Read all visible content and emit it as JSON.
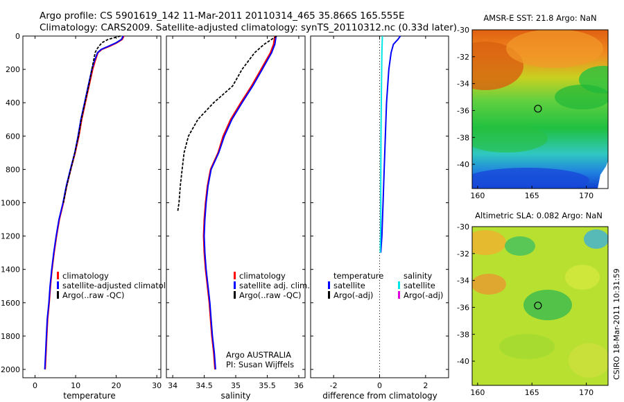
{
  "header": {
    "line1": "Argo profile: CS 5901619_142 11-Mar-2011 20110314_465 35.866S 165.555E",
    "line2": "Climatology: CARS2009. Satellite-adjusted climatology: synTS_20110312.nc (0.33d later)"
  },
  "colors": {
    "climatology": "#ff0000",
    "satellite": "#0000ff",
    "argo": "#000000",
    "salinity_satellite": "#00e5e5",
    "salinity_argo": "#e000e0"
  },
  "chart_data": [
    {
      "type": "line",
      "name": "temperature-profile",
      "xlabel": "temperature",
      "ylabel": "",
      "xlim": [
        -3,
        31
      ],
      "ylim": [
        2050,
        0
      ],
      "xticks": [
        0,
        10,
        20,
        30
      ],
      "yticks": [
        0,
        200,
        400,
        600,
        800,
        1000,
        1200,
        1400,
        1600,
        1800,
        2000
      ],
      "legend": {
        "placement": "lower-right",
        "entries": [
          "climatology",
          "satellite-adjusted climatology",
          "Argo(..raw -QC)"
        ]
      },
      "series": [
        {
          "name": "climatology",
          "color": "#ff0000",
          "points": [
            [
              21.9,
              0
            ],
            [
              21.5,
              20
            ],
            [
              20.2,
              40
            ],
            [
              18.5,
              60
            ],
            [
              16.5,
              80
            ],
            [
              15.5,
              100
            ],
            [
              14.8,
              150
            ],
            [
              14.2,
              200
            ],
            [
              13.3,
              300
            ],
            [
              12.4,
              400
            ],
            [
              11.5,
              500
            ],
            [
              10.8,
              600
            ],
            [
              9.9,
              700
            ],
            [
              8.8,
              800
            ],
            [
              7.8,
              900
            ],
            [
              7.0,
              1000
            ],
            [
              6.0,
              1100
            ],
            [
              5.3,
              1200
            ],
            [
              4.7,
              1300
            ],
            [
              4.2,
              1400
            ],
            [
              3.8,
              1500
            ],
            [
              3.5,
              1600
            ],
            [
              3.1,
              1700
            ],
            [
              2.9,
              1800
            ],
            [
              2.7,
              1900
            ],
            [
              2.5,
              2000
            ]
          ]
        },
        {
          "name": "satellite-adjusted climatology",
          "color": "#0000ff",
          "points": [
            [
              21.7,
              0
            ],
            [
              21.3,
              20
            ],
            [
              20.0,
              40
            ],
            [
              18.2,
              60
            ],
            [
              16.3,
              80
            ],
            [
              15.4,
              100
            ],
            [
              14.6,
              150
            ],
            [
              14.0,
              200
            ],
            [
              13.1,
              300
            ],
            [
              12.2,
              400
            ],
            [
              11.3,
              500
            ],
            [
              10.6,
              600
            ],
            [
              9.8,
              700
            ],
            [
              8.7,
              800
            ],
            [
              7.7,
              900
            ],
            [
              6.9,
              1000
            ],
            [
              5.9,
              1100
            ],
            [
              5.2,
              1200
            ],
            [
              4.6,
              1300
            ],
            [
              4.1,
              1400
            ],
            [
              3.7,
              1500
            ],
            [
              3.4,
              1600
            ],
            [
              3.0,
              1700
            ],
            [
              2.8,
              1800
            ],
            [
              2.6,
              1900
            ],
            [
              2.4,
              2000
            ]
          ]
        },
        {
          "name": "Argo(..raw -QC)",
          "color": "#000000",
          "dashed": true,
          "points": [
            [
              21.0,
              0
            ],
            [
              18.0,
              20
            ],
            [
              16.5,
              40
            ],
            [
              15.8,
              60
            ],
            [
              15.2,
              80
            ],
            [
              14.8,
              100
            ],
            [
              14.4,
              150
            ],
            [
              14.0,
              200
            ],
            [
              13.2,
              300
            ],
            [
              12.3,
              400
            ],
            [
              11.4,
              500
            ],
            [
              10.7,
              600
            ],
            [
              9.8,
              700
            ],
            [
              8.8,
              800
            ],
            [
              7.8,
              900
            ],
            [
              7.0,
              1000
            ]
          ]
        }
      ]
    },
    {
      "type": "line",
      "name": "salinity-profile",
      "xlabel": "salinity",
      "ylabel": "",
      "xlim": [
        33.9,
        36.1
      ],
      "ylim": [
        2050,
        0
      ],
      "xticks": [
        34,
        34.5,
        35,
        35.5,
        36
      ],
      "legend": {
        "placement": "lower-right",
        "entries": [
          "climatology",
          "satellite adj. clim.",
          "Argo(..raw -QC)"
        ]
      },
      "annotations": [
        "Argo AUSTRALIA",
        "PI: Susan Wijffels"
      ],
      "series": [
        {
          "name": "climatology",
          "color": "#ff0000",
          "points": [
            [
              35.62,
              0
            ],
            [
              35.6,
              50
            ],
            [
              35.55,
              100
            ],
            [
              35.4,
              200
            ],
            [
              35.25,
              300
            ],
            [
              35.08,
              400
            ],
            [
              34.92,
              500
            ],
            [
              34.8,
              600
            ],
            [
              34.72,
              700
            ],
            [
              34.6,
              800
            ],
            [
              34.55,
              900
            ],
            [
              34.52,
              1000
            ],
            [
              34.5,
              1100
            ],
            [
              34.49,
              1200
            ],
            [
              34.5,
              1300
            ],
            [
              34.52,
              1400
            ],
            [
              34.55,
              1500
            ],
            [
              34.58,
              1600
            ],
            [
              34.6,
              1700
            ],
            [
              34.62,
              1800
            ],
            [
              34.65,
              1900
            ],
            [
              34.67,
              2000
            ]
          ]
        },
        {
          "name": "satellite adj. clim.",
          "color": "#0000ff",
          "points": [
            [
              35.64,
              0
            ],
            [
              35.62,
              50
            ],
            [
              35.57,
              100
            ],
            [
              35.42,
              200
            ],
            [
              35.27,
              300
            ],
            [
              35.1,
              400
            ],
            [
              34.94,
              500
            ],
            [
              34.82,
              600
            ],
            [
              34.73,
              700
            ],
            [
              34.61,
              800
            ],
            [
              34.56,
              900
            ],
            [
              34.53,
              1000
            ],
            [
              34.51,
              1100
            ],
            [
              34.5,
              1200
            ],
            [
              34.51,
              1300
            ],
            [
              34.53,
              1400
            ],
            [
              34.56,
              1500
            ],
            [
              34.59,
              1600
            ],
            [
              34.61,
              1700
            ],
            [
              34.63,
              1800
            ],
            [
              34.66,
              1900
            ],
            [
              34.68,
              2000
            ]
          ]
        },
        {
          "name": "Argo(..raw -QC)",
          "color": "#000000",
          "dashed": true,
          "points": [
            [
              35.65,
              0
            ],
            [
              35.45,
              50
            ],
            [
              35.3,
              100
            ],
            [
              35.1,
              200
            ],
            [
              34.95,
              300
            ],
            [
              34.65,
              400
            ],
            [
              34.4,
              500
            ],
            [
              34.25,
              600
            ],
            [
              34.18,
              700
            ],
            [
              34.15,
              800
            ],
            [
              34.12,
              900
            ],
            [
              34.1,
              1000
            ],
            [
              34.08,
              1050
            ]
          ]
        }
      ]
    },
    {
      "type": "line",
      "name": "difference-profile",
      "xlabel": "difference from climatology",
      "ylabel": "",
      "xlim": [
        -3,
        3
      ],
      "ylim": [
        2050,
        0
      ],
      "xticks": [
        -2,
        0,
        2
      ],
      "legend": {
        "placement": "lower-center",
        "columns": [
          {
            "heading": "temperature",
            "entries": [
              "satellite",
              "Argo(-adj)"
            ]
          },
          {
            "heading": "salinity",
            "entries": [
              "satellite",
              "Argo(-adj)"
            ]
          }
        ]
      },
      "series": [
        {
          "name": "temperature satellite",
          "color": "#0000ff",
          "points": [
            [
              0.9,
              0
            ],
            [
              0.8,
              20
            ],
            [
              0.6,
              50
            ],
            [
              0.5,
              100
            ],
            [
              0.4,
              200
            ],
            [
              0.3,
              400
            ],
            [
              0.25,
              600
            ],
            [
              0.2,
              800
            ],
            [
              0.15,
              1000
            ],
            [
              0.1,
              1200
            ],
            [
              0.05,
              1300
            ]
          ]
        },
        {
          "name": "salinity satellite",
          "color": "#00e5e5",
          "points": [
            [
              0.12,
              0
            ],
            [
              0.1,
              100
            ],
            [
              0.08,
              300
            ],
            [
              0.06,
              600
            ],
            [
              0.05,
              900
            ],
            [
              0.05,
              1100
            ],
            [
              0.03,
              1300
            ]
          ]
        }
      ]
    },
    {
      "type": "heatmap",
      "name": "amsr-e-sst-map",
      "title": "AMSR-E SST: 21.8 Argo: NaN",
      "xlim": [
        159.5,
        172
      ],
      "ylim": [
        -41.8,
        -30
      ],
      "xticks": [
        160,
        165,
        170
      ],
      "yticks": [
        -30,
        -32,
        -34,
        -36,
        -38,
        -40
      ],
      "marker": {
        "lon": 165.555,
        "lat": -35.866
      }
    },
    {
      "type": "heatmap",
      "name": "altimetric-sla-map",
      "title": "Altimetric SLA: 0.082 Argo: NaN",
      "xlim": [
        159.5,
        172
      ],
      "ylim": [
        -41.8,
        -30
      ],
      "xticks": [
        160,
        165,
        170
      ],
      "yticks": [
        -30,
        -32,
        -34,
        -36,
        -38,
        -40
      ],
      "marker": {
        "lon": 165.555,
        "lat": -35.866
      }
    }
  ],
  "stamp": "CSIRO 18-Mar-2011 10:31:59"
}
